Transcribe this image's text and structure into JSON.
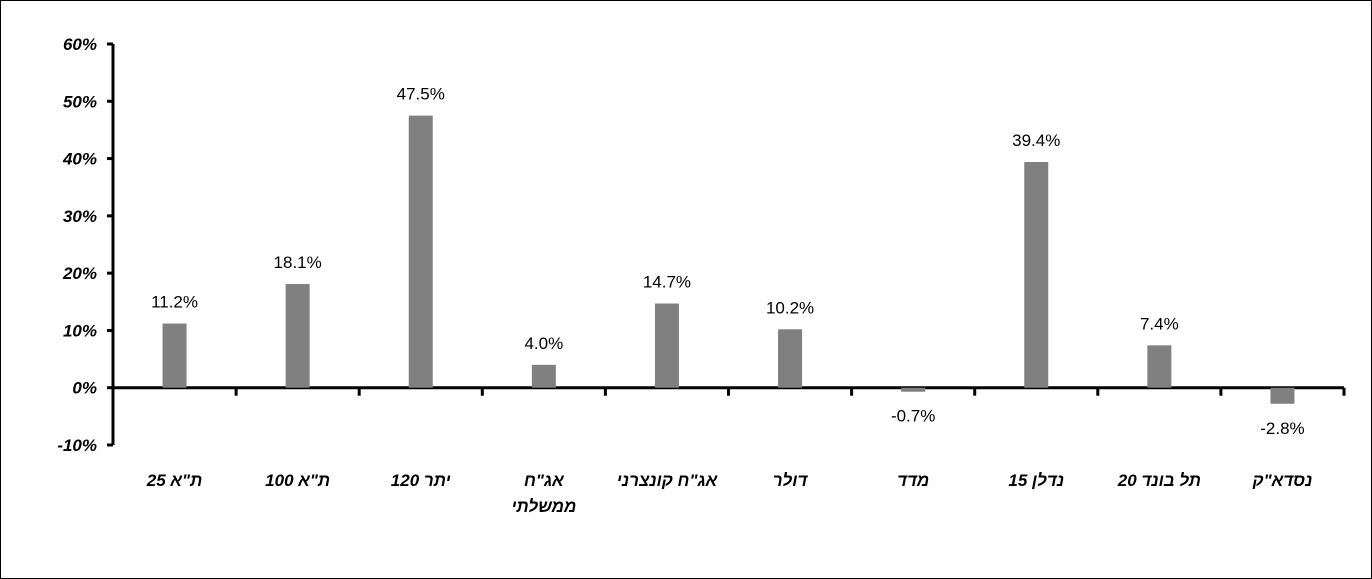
{
  "chart_data": {
    "type": "bar",
    "categories": [
      "ת\"א 25",
      "ת\"א 100",
      "יתר 120",
      "אג\"ח ממשלתי",
      "אג\"ח קונצרני",
      "דולר",
      "מדד",
      "נדלן 15",
      "תל בונד 20",
      "נסדא\"ק"
    ],
    "category_lines": [
      [
        "ת\"א 25"
      ],
      [
        "ת\"א 100"
      ],
      [
        "יתר 120"
      ],
      [
        "אג\"ח",
        "ממשלתי"
      ],
      [
        "אג\"ח קונצרני"
      ],
      [
        "דולר"
      ],
      [
        "מדד"
      ],
      [
        "נדלן 15"
      ],
      [
        "תל בונד 20"
      ],
      [
        "נסדא\"ק"
      ]
    ],
    "values": [
      11.2,
      18.1,
      47.5,
      4.0,
      14.7,
      10.2,
      -0.7,
      39.4,
      7.4,
      -2.8
    ],
    "data_labels": [
      "11.2%",
      "18.1%",
      "47.5%",
      "4.0%",
      "14.7%",
      "10.2%",
      "-0.7%",
      "39.4%",
      "7.4%",
      "-2.8%"
    ],
    "yticks": [
      "-10%",
      "0%",
      "10%",
      "20%",
      "30%",
      "40%",
      "50%",
      "60%"
    ],
    "ylim": [
      -10,
      60
    ],
    "title": "",
    "xlabel": "",
    "ylabel": "",
    "grid": false,
    "legend": "none",
    "bar_color": "#808080"
  }
}
